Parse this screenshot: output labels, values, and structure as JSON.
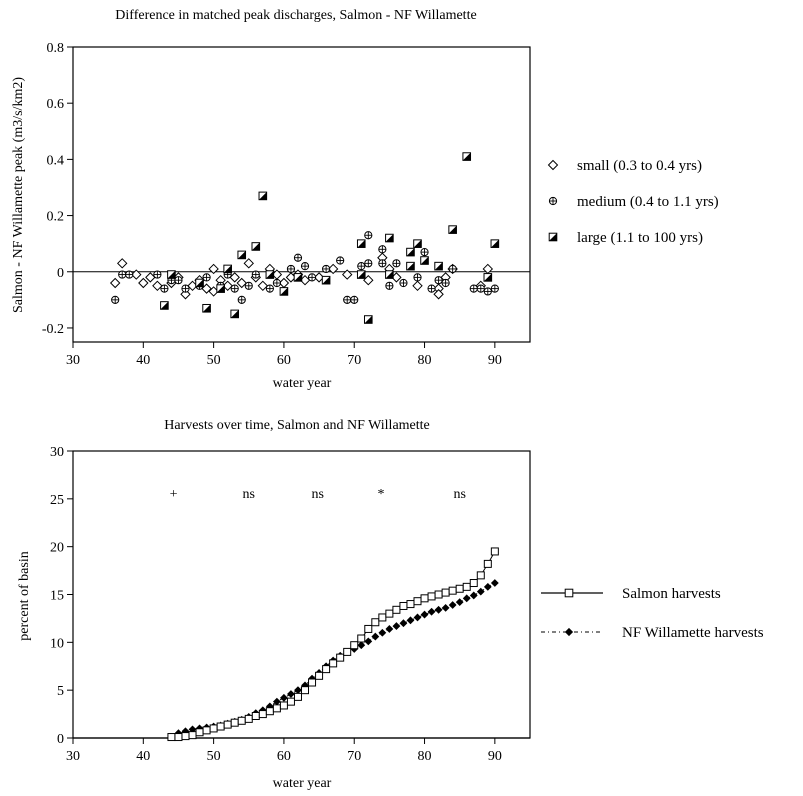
{
  "chart_data": [
    {
      "type": "scatter",
      "title": "Difference in matched peak discharges, Salmon - NF Willamette",
      "xlabel": "water year",
      "ylabel": "Salmon - NF Willamette peak (m3/s/km2)",
      "xlim": [
        30,
        95
      ],
      "ylim": [
        -0.25,
        0.8
      ],
      "xticks": [
        "30",
        "40",
        "50",
        "60",
        "70",
        "80",
        "90"
      ],
      "yticks": [
        "0.8",
        "0.6",
        "0.4",
        "0.2",
        "0",
        "-0.2"
      ],
      "reference_line": 0,
      "legend_position": "right",
      "series": [
        {
          "name": "small (0.3 to 0.4 yrs)",
          "marker": "diamond",
          "points": [
            [
              36,
              -0.04
            ],
            [
              37,
              0.03
            ],
            [
              39,
              -0.01
            ],
            [
              40,
              -0.04
            ],
            [
              41,
              -0.02
            ],
            [
              42,
              -0.05
            ],
            [
              44,
              -0.04
            ],
            [
              45,
              -0.02
            ],
            [
              46,
              -0.08
            ],
            [
              47,
              -0.05
            ],
            [
              48,
              -0.03
            ],
            [
              49,
              -0.06
            ],
            [
              50,
              0.01
            ],
            [
              50,
              -0.07
            ],
            [
              51,
              -0.03
            ],
            [
              52,
              -0.05
            ],
            [
              53,
              -0.02
            ],
            [
              54,
              -0.04
            ],
            [
              55,
              0.03
            ],
            [
              56,
              -0.02
            ],
            [
              57,
              -0.05
            ],
            [
              58,
              0.01
            ],
            [
              59,
              -0.01
            ],
            [
              60,
              -0.04
            ],
            [
              61,
              -0.02
            ],
            [
              62,
              -0.01
            ],
            [
              63,
              -0.03
            ],
            [
              65,
              -0.02
            ],
            [
              67,
              0.01
            ],
            [
              69,
              -0.01
            ],
            [
              72,
              -0.03
            ],
            [
              74,
              0.05
            ],
            [
              75,
              0.01
            ],
            [
              76,
              -0.02
            ],
            [
              79,
              -0.05
            ],
            [
              82,
              -0.06
            ],
            [
              82,
              -0.08
            ],
            [
              83,
              -0.02
            ],
            [
              84,
              0.01
            ],
            [
              88,
              -0.05
            ],
            [
              89,
              0.01
            ]
          ]
        },
        {
          "name": "medium (0.4 to 1.1 yrs)",
          "marker": "circle-cross",
          "points": [
            [
              36,
              -0.1
            ],
            [
              37,
              -0.01
            ],
            [
              38,
              -0.01
            ],
            [
              42,
              -0.01
            ],
            [
              43,
              -0.06
            ],
            [
              44,
              -0.03
            ],
            [
              45,
              -0.03
            ],
            [
              46,
              -0.06
            ],
            [
              48,
              -0.05
            ],
            [
              49,
              -0.02
            ],
            [
              51,
              -0.05
            ],
            [
              52,
              -0.01
            ],
            [
              53,
              -0.06
            ],
            [
              54,
              -0.1
            ],
            [
              55,
              -0.05
            ],
            [
              56,
              -0.01
            ],
            [
              58,
              -0.06
            ],
            [
              59,
              -0.04
            ],
            [
              61,
              0.01
            ],
            [
              62,
              0.05
            ],
            [
              63,
              0.02
            ],
            [
              64,
              -0.02
            ],
            [
              66,
              0.01
            ],
            [
              68,
              0.04
            ],
            [
              69,
              -0.1
            ],
            [
              70,
              -0.1
            ],
            [
              71,
              0.02
            ],
            [
              72,
              0.13
            ],
            [
              72,
              0.03
            ],
            [
              74,
              0.08
            ],
            [
              74,
              0.03
            ],
            [
              75,
              -0.05
            ],
            [
              76,
              0.03
            ],
            [
              77,
              -0.04
            ],
            [
              79,
              -0.02
            ],
            [
              80,
              0.07
            ],
            [
              81,
              -0.06
            ],
            [
              82,
              -0.03
            ],
            [
              83,
              -0.04
            ],
            [
              84,
              0.01
            ],
            [
              87,
              -0.06
            ],
            [
              88,
              -0.06
            ],
            [
              89,
              -0.07
            ],
            [
              90,
              -0.06
            ]
          ]
        },
        {
          "name": "large (1.1 to 100 yrs)",
          "marker": "half-filled-square",
          "points": [
            [
              43,
              -0.12
            ],
            [
              44,
              -0.01
            ],
            [
              48,
              -0.04
            ],
            [
              49,
              -0.13
            ],
            [
              51,
              -0.06
            ],
            [
              52,
              0.01
            ],
            [
              53,
              -0.15
            ],
            [
              54,
              0.06
            ],
            [
              56,
              0.09
            ],
            [
              57,
              0.27
            ],
            [
              58,
              -0.01
            ],
            [
              60,
              -0.07
            ],
            [
              62,
              -0.02
            ],
            [
              66,
              -0.03
            ],
            [
              71,
              -0.01
            ],
            [
              71,
              0.1
            ],
            [
              72,
              -0.17
            ],
            [
              75,
              0.12
            ],
            [
              75,
              -0.01
            ],
            [
              78,
              0.07
            ],
            [
              78,
              0.02
            ],
            [
              79,
              0.1
            ],
            [
              80,
              0.04
            ],
            [
              82,
              0.02
            ],
            [
              84,
              0.15
            ],
            [
              86,
              0.41
            ],
            [
              89,
              -0.02
            ],
            [
              90,
              0.1
            ]
          ]
        }
      ]
    },
    {
      "type": "line",
      "title": "Harvests over time, Salmon and NF Willamette",
      "xlabel": "water year",
      "ylabel": "percent of basin",
      "xlim": [
        30,
        95
      ],
      "ylim": [
        0,
        30
      ],
      "xticks": [
        "30",
        "40",
        "50",
        "60",
        "70",
        "80",
        "90"
      ],
      "yticks": [
        "30",
        "25",
        "20",
        "15",
        "10",
        "5",
        "0"
      ],
      "legend_position": "right",
      "annotations": [
        {
          "text": "+",
          "x": 44.3,
          "y": 25.6
        },
        {
          "text": "ns",
          "x": 55,
          "y": 25.6
        },
        {
          "text": "ns",
          "x": 64.8,
          "y": 25.6
        },
        {
          "text": "*",
          "x": 73.8,
          "y": 25.6
        },
        {
          "text": "ns",
          "x": 85,
          "y": 25.6
        }
      ],
      "series": [
        {
          "name": "Salmon harvests",
          "marker": "open-square",
          "x": [
            44,
            45,
            46,
            47,
            48,
            49,
            50,
            51,
            52,
            53,
            54,
            55,
            56,
            57,
            58,
            59,
            60,
            61,
            62,
            63,
            64,
            65,
            66,
            67,
            68,
            69,
            70,
            71,
            72,
            73,
            74,
            75,
            76,
            77,
            78,
            79,
            80,
            81,
            82,
            83,
            84,
            85,
            86,
            87,
            88,
            89,
            90
          ],
          "y": [
            0.1,
            0.1,
            0.2,
            0.3,
            0.6,
            0.8,
            1.0,
            1.2,
            1.4,
            1.6,
            1.8,
            2.0,
            2.3,
            2.5,
            2.8,
            3.1,
            3.4,
            3.8,
            4.3,
            5.0,
            5.8,
            6.5,
            7.2,
            7.8,
            8.4,
            9.0,
            9.7,
            10.4,
            11.4,
            12.1,
            12.6,
            13.0,
            13.4,
            13.8,
            14.0,
            14.3,
            14.6,
            14.8,
            15.0,
            15.2,
            15.4,
            15.6,
            15.8,
            16.2,
            17.0,
            18.2,
            19.5
          ]
        },
        {
          "name": "NF Willamette harvests",
          "marker": "filled-diamond",
          "x": [
            45,
            46,
            47,
            48,
            49,
            50,
            51,
            52,
            53,
            54,
            55,
            56,
            57,
            58,
            59,
            60,
            61,
            62,
            63,
            64,
            65,
            66,
            67,
            68,
            69,
            70,
            71,
            72,
            73,
            74,
            75,
            76,
            77,
            78,
            79,
            80,
            81,
            82,
            83,
            84,
            85,
            86,
            87,
            88,
            89,
            90
          ],
          "y": [
            0.5,
            0.7,
            0.9,
            1.0,
            1.1,
            1.2,
            1.3,
            1.5,
            1.7,
            1.9,
            2.2,
            2.6,
            2.9,
            3.3,
            3.8,
            4.2,
            4.6,
            5.0,
            5.5,
            6.2,
            6.8,
            7.5,
            8.1,
            8.6,
            9.0,
            9.3,
            9.7,
            10.1,
            10.6,
            11.0,
            11.4,
            11.7,
            12.0,
            12.3,
            12.6,
            12.9,
            13.2,
            13.4,
            13.6,
            13.9,
            14.2,
            14.6,
            14.9,
            15.3,
            15.8,
            16.2
          ]
        }
      ]
    }
  ]
}
